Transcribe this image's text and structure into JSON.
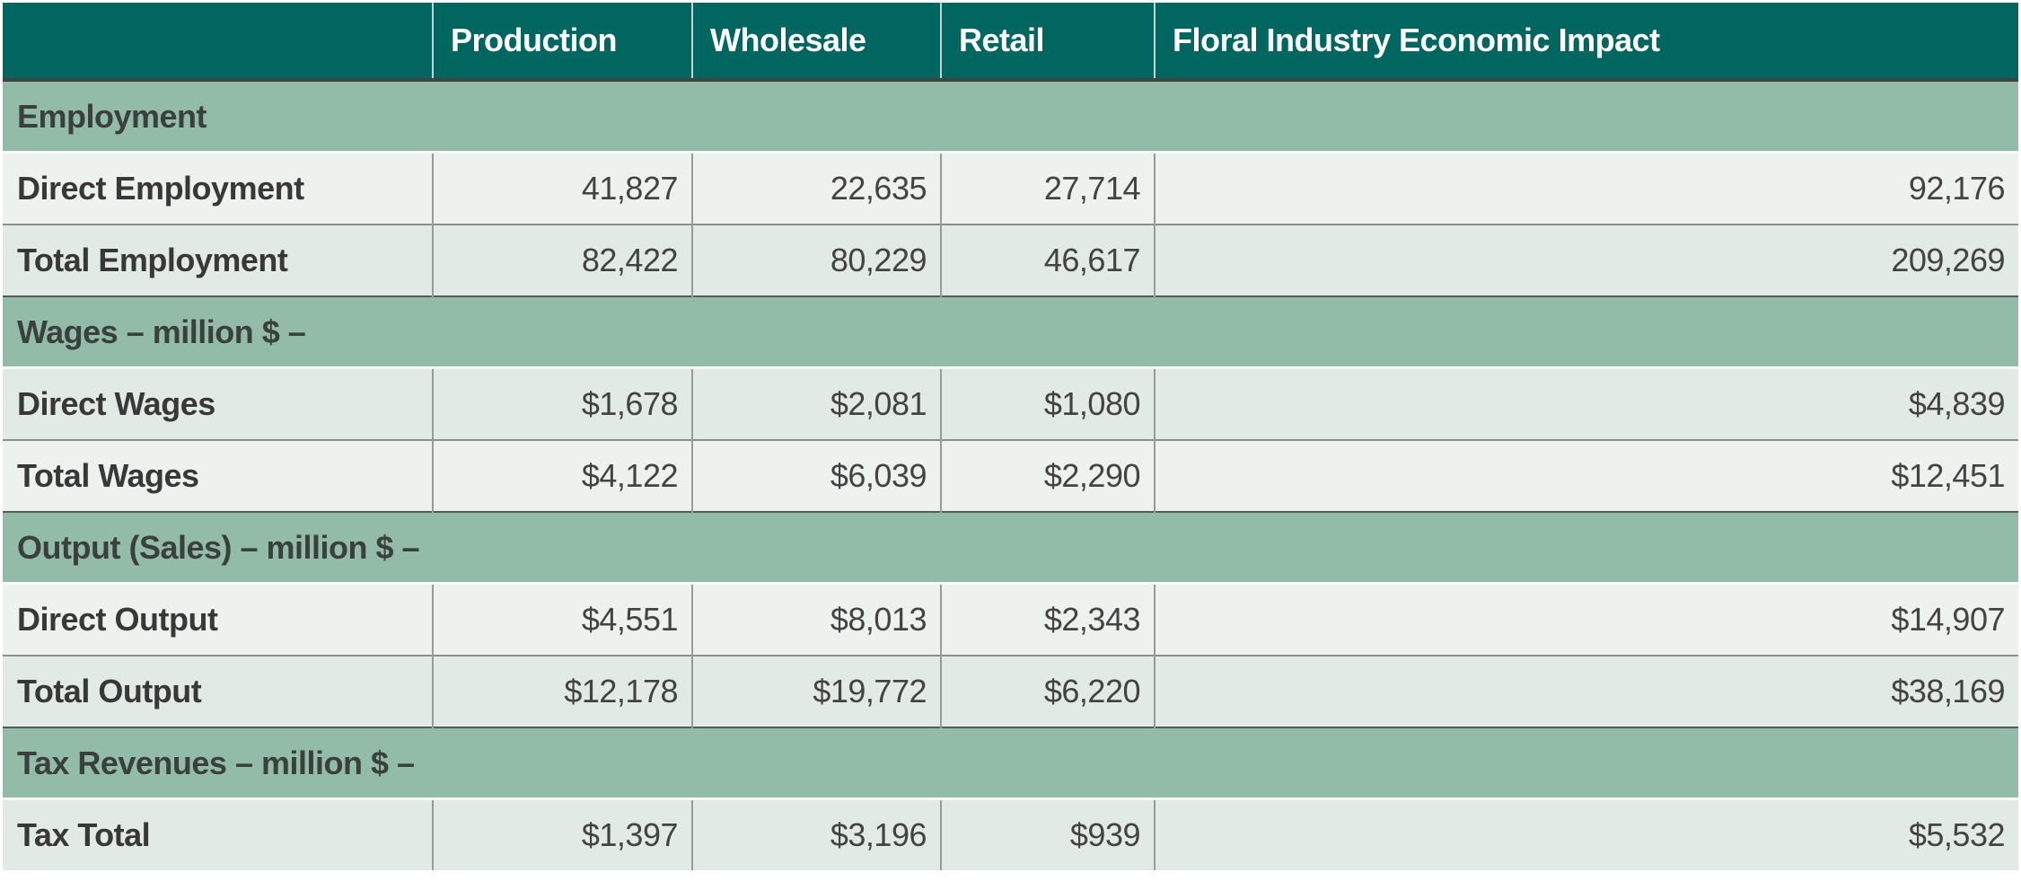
{
  "colors": {
    "header_bg": "#01665f",
    "header_text": "#ffffff",
    "section_bg": "#92bba8",
    "row_light_bg": "#eef2ef",
    "row_dark_bg": "#e1eae4",
    "body_text": "#434343"
  },
  "table": {
    "columns": [
      "",
      "Production",
      "Wholesale",
      "Retail",
      "Floral Industry Economic Impact"
    ],
    "sections": [
      {
        "title": "Employment",
        "rows": [
          {
            "label": "Direct Employment",
            "values": [
              "41,827",
              "22,635",
              "27,714",
              "92,176"
            ]
          },
          {
            "label": "Total Employment",
            "values": [
              "82,422",
              "80,229",
              "46,617",
              "209,269"
            ]
          }
        ]
      },
      {
        "title": "Wages – million $ –",
        "rows": [
          {
            "label": "Direct Wages",
            "values": [
              "$1,678",
              "$2,081",
              "$1,080",
              "$4,839"
            ]
          },
          {
            "label": "Total Wages",
            "values": [
              "$4,122",
              "$6,039",
              "$2,290",
              "$12,451"
            ]
          }
        ]
      },
      {
        "title": "Output (Sales) – million $ –",
        "rows": [
          {
            "label": "Direct Output",
            "values": [
              "$4,551",
              "$8,013",
              "$2,343",
              "$14,907"
            ]
          },
          {
            "label": "Total Output",
            "values": [
              "$12,178",
              "$19,772",
              "$6,220",
              "$38,169"
            ]
          }
        ]
      },
      {
        "title": "Tax Revenues – million $ –",
        "rows": [
          {
            "label": "Tax Total",
            "values": [
              "$1,397",
              "$3,196",
              "$939",
              "$5,532"
            ]
          }
        ]
      }
    ]
  },
  "chart_data": {
    "type": "table",
    "title": "Floral Industry Economic Impact",
    "columns": [
      "Production",
      "Wholesale",
      "Retail",
      "Floral Industry Economic Impact"
    ],
    "sections": [
      {
        "section": "Employment",
        "rows": [
          {
            "label": "Direct Employment",
            "values": [
              41827,
              22635,
              27714,
              92176
            ]
          },
          {
            "label": "Total Employment",
            "values": [
              82422,
              80229,
              46617,
              209269
            ]
          }
        ]
      },
      {
        "section": "Wages – million $ –",
        "rows": [
          {
            "label": "Direct Wages",
            "values": [
              1678,
              2081,
              1080,
              4839
            ]
          },
          {
            "label": "Total Wages",
            "values": [
              4122,
              6039,
              2290,
              12451
            ]
          }
        ]
      },
      {
        "section": "Output (Sales) – million $ –",
        "rows": [
          {
            "label": "Direct Output",
            "values": [
              4551,
              8013,
              2343,
              14907
            ]
          },
          {
            "label": "Total Output",
            "values": [
              12178,
              19772,
              6220,
              38169
            ]
          }
        ]
      },
      {
        "section": "Tax Revenues – million $ –",
        "rows": [
          {
            "label": "Tax Total",
            "values": [
              1397,
              3196,
              939,
              5532
            ]
          }
        ]
      }
    ]
  }
}
